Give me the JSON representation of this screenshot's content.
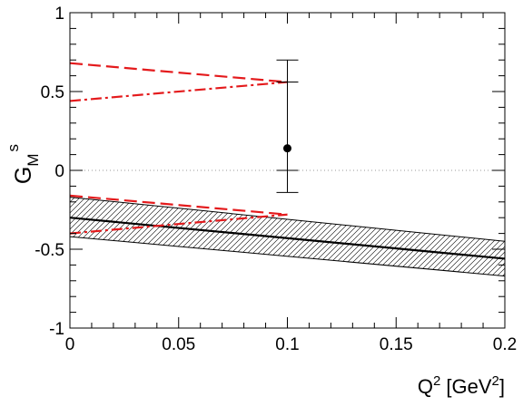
{
  "chart_data": {
    "type": "line",
    "ylabel": {
      "main": "G",
      "sub": "M",
      "sup": "s"
    },
    "xlabel": {
      "pre": "Q",
      "sup": "2",
      "mid": " [GeV",
      "sup2": "2",
      "post": "]"
    },
    "xlim": [
      0,
      0.2
    ],
    "ylim": [
      -1,
      1
    ],
    "x_ticks": [
      {
        "value": 0,
        "label": "0"
      },
      {
        "value": 0.05,
        "label": "0.05"
      },
      {
        "value": 0.1,
        "label": "0.1"
      },
      {
        "value": 0.15,
        "label": "0.15"
      },
      {
        "value": 0.2,
        "label": "0.2"
      }
    ],
    "y_ticks": [
      {
        "value": -1,
        "label": "-1"
      },
      {
        "value": -0.5,
        "label": "-0.5"
      },
      {
        "value": 0,
        "label": "0"
      },
      {
        "value": 0.5,
        "label": "0.5"
      },
      {
        "value": 1,
        "label": "1"
      }
    ],
    "reference_line": {
      "y": 0,
      "style": "dotted",
      "color": "#999999"
    },
    "band": {
      "style": "hatched",
      "upper": [
        [
          0,
          -0.17
        ],
        [
          0.2,
          -0.45
        ]
      ],
      "lower": [
        [
          0,
          -0.42
        ],
        [
          0.2,
          -0.67
        ]
      ]
    },
    "series": [
      {
        "id": "central",
        "style": "solid",
        "color": "#000000",
        "points": [
          [
            0,
            -0.3
          ],
          [
            0.2,
            -0.56
          ]
        ]
      },
      {
        "id": "dashed-upper",
        "style": "dashed",
        "color": "#e41a1c",
        "points": [
          [
            0,
            0.68
          ],
          [
            0.1,
            0.56
          ]
        ]
      },
      {
        "id": "dashdot-upper",
        "style": "dashdot",
        "color": "#e41a1c",
        "points": [
          [
            0,
            0.44
          ],
          [
            0.1,
            0.56
          ]
        ]
      },
      {
        "id": "dashed-lower",
        "style": "dashed",
        "color": "#e41a1c",
        "points": [
          [
            0,
            -0.16
          ],
          [
            0.1,
            -0.28
          ]
        ]
      },
      {
        "id": "dashdot-lower",
        "style": "dashdot",
        "color": "#e41a1c",
        "points": [
          [
            0,
            -0.4
          ],
          [
            0.1,
            -0.28
          ]
        ]
      }
    ],
    "data_point": {
      "x": 0.1,
      "y": 0.14,
      "stat_error": [
        -0.14,
        0.42
      ],
      "total_error": [
        -0.28,
        0.56
      ]
    }
  }
}
